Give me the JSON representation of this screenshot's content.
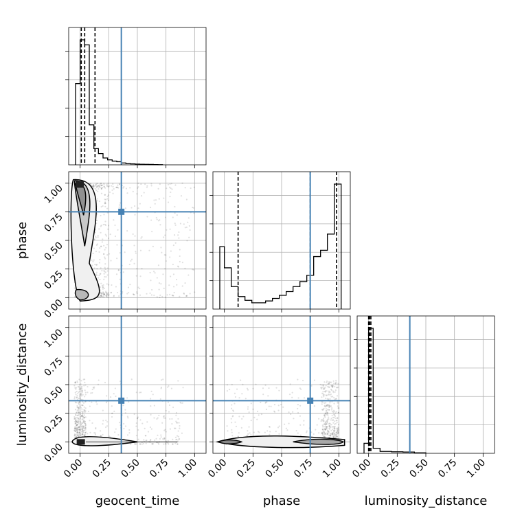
{
  "chart_data": {
    "type": "corner",
    "parameters": [
      "geocent_time",
      "phase",
      "luminosity_distance"
    ],
    "axis_range": [
      -0.1,
      1.1
    ],
    "ticks": [
      0.0,
      0.25,
      0.5,
      0.75,
      1.0
    ],
    "tick_labels": [
      "0.00",
      "0.25",
      "0.50",
      "0.75",
      "1.00"
    ],
    "grid": true,
    "truth_color": "#4682b4",
    "truths": {
      "geocent_time": 0.36,
      "phase": 0.75,
      "luminosity_distance": 0.36
    },
    "histograms": [
      {
        "parameter": "geocent_time",
        "bin_edges": [
          -0.04,
          0.0,
          0.04,
          0.08,
          0.12,
          0.16,
          0.2,
          0.24,
          0.28,
          0.32,
          0.36,
          0.4,
          0.44,
          0.48,
          0.52,
          0.56,
          0.6,
          0.64,
          0.68,
          0.72
        ],
        "counts": [
          0.65,
          1.0,
          0.96,
          0.32,
          0.13,
          0.09,
          0.055,
          0.04,
          0.03,
          0.025,
          0.015,
          0.01,
          0.008,
          0.006,
          0.005,
          0.004,
          0.003,
          0.002,
          0.001
        ],
        "quantiles": [
          0.01,
          0.04,
          0.13
        ]
      },
      {
        "parameter": "phase",
        "bin_edges": [
          -0.04,
          0.0,
          0.06,
          0.12,
          0.18,
          0.24,
          0.3,
          0.36,
          0.42,
          0.48,
          0.54,
          0.6,
          0.66,
          0.72,
          0.78,
          0.84,
          0.9,
          0.96,
          1.02
        ],
        "counts": [
          0.5,
          0.33,
          0.18,
          0.1,
          0.07,
          0.05,
          0.05,
          0.065,
          0.085,
          0.11,
          0.14,
          0.18,
          0.22,
          0.27,
          0.42,
          0.47,
          0.6,
          1.0
        ],
        "quantiles": [
          0.12,
          0.75,
          0.98
        ]
      },
      {
        "parameter": "luminosity_distance",
        "bin_edges": [
          -0.04,
          0.0,
          0.04,
          0.1,
          0.2,
          0.3,
          0.4,
          0.5
        ],
        "counts": [
          0.08,
          1.0,
          0.04,
          0.015,
          0.012,
          0.01,
          0.004
        ],
        "quantiles": [
          0.0,
          0.01,
          0.02
        ]
      }
    ],
    "panels_2d": [
      {
        "x": "geocent_time",
        "y": "phase",
        "scatter_extent": {
          "x": [
            0.0,
            1.0
          ],
          "y": [
            0.0,
            1.0
          ],
          "dense_x": [
            -0.05,
            0.25
          ]
        }
      },
      {
        "x": "geocent_time",
        "y": "luminosity_distance",
        "scatter_extent": {
          "x": [
            -0.05,
            0.9
          ],
          "y": [
            -0.02,
            0.55
          ],
          "dense_x": [
            -0.05,
            0.05
          ]
        }
      },
      {
        "x": "phase",
        "y": "luminosity_distance",
        "scatter_extent": {
          "x": [
            0.0,
            1.0
          ],
          "y": [
            -0.02,
            0.55
          ],
          "dense_x": [
            0.85,
            1.0
          ]
        }
      }
    ]
  }
}
